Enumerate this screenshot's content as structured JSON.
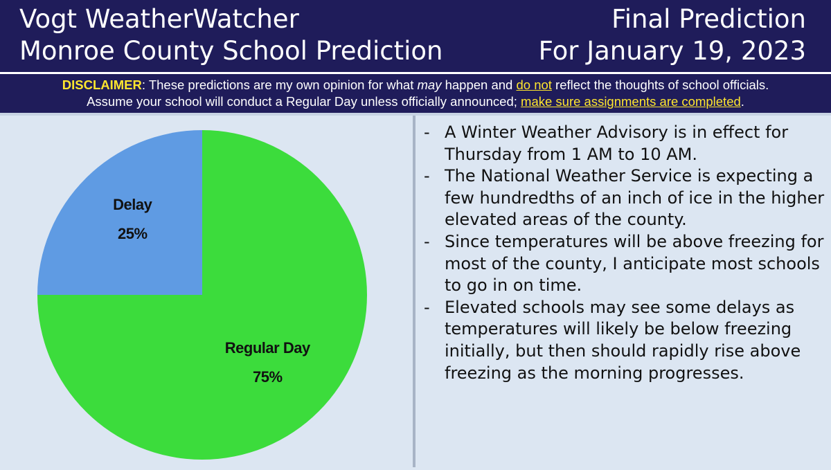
{
  "header": {
    "title_line1": "Vogt WeatherWatcher",
    "title_line2": "Monroe County School Prediction",
    "right_line1": "Final Prediction",
    "right_line2": "For January 19, 2023"
  },
  "disclaimer": {
    "label": "DISCLAIMER",
    "text_a": ": These predictions are my own opinion for what ",
    "may": "may",
    "text_b": " happen and ",
    "do_not": "do not",
    "text_c": " reflect the thoughts of school officials.",
    "line2_a": "Assume your school will conduct a Regular Day unless officially announced; ",
    "line2_link": "make sure assignments are completed",
    "line2_end": "."
  },
  "colors": {
    "header_bg": "#1f1c5a",
    "body_bg": "#dce6f2",
    "accent_yellow": "#ffe62e",
    "regular_day": "#3cdc3c",
    "delay": "#5f9be3"
  },
  "chart_data": {
    "type": "pie",
    "slices": [
      {
        "label": "Regular Day",
        "value": 75,
        "value_label": "75%",
        "color": "#3cdc3c"
      },
      {
        "label": "Delay",
        "value": 25,
        "value_label": "25%",
        "color": "#5f9be3"
      }
    ]
  },
  "bullets": [
    "A Winter Weather Advisory is in effect for Thursday from 1 AM to 10 AM.",
    "The National Weather Service is expecting a few hundredths of an inch of ice in the higher elevated areas of the county.",
    "Since temperatures will be above freezing for most of the county, I anticipate most schools to go in on time.",
    "Elevated schools may see some delays as temperatures will likely be below freezing initially, but then should rapidly rise above freezing as the morning progresses."
  ],
  "bullet_marker": "-"
}
